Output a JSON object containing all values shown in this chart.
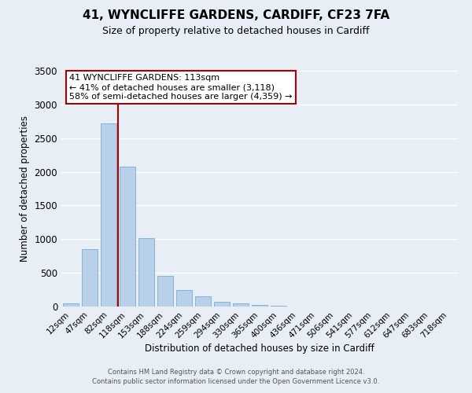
{
  "title1": "41, WYNCLIFFE GARDENS, CARDIFF, CF23 7FA",
  "title2": "Size of property relative to detached houses in Cardiff",
  "xlabel": "Distribution of detached houses by size in Cardiff",
  "ylabel": "Number of detached properties",
  "bar_labels": [
    "12sqm",
    "47sqm",
    "82sqm",
    "118sqm",
    "153sqm",
    "188sqm",
    "224sqm",
    "259sqm",
    "294sqm",
    "330sqm",
    "365sqm",
    "400sqm",
    "436sqm",
    "471sqm",
    "506sqm",
    "541sqm",
    "577sqm",
    "612sqm",
    "647sqm",
    "683sqm",
    "718sqm"
  ],
  "bar_values": [
    50,
    850,
    2720,
    2080,
    1010,
    460,
    240,
    150,
    70,
    50,
    25,
    10,
    5,
    2,
    1,
    0,
    0,
    0,
    0,
    0,
    0
  ],
  "bar_color": "#b8d0ea",
  "bar_edge_color": "#7aacce",
  "vline_x_index": 3,
  "vline_color": "#aa0000",
  "annotation_line1": "41 WYNCLIFFE GARDENS: 113sqm",
  "annotation_line2": "← 41% of detached houses are smaller (3,118)",
  "annotation_line3": "58% of semi-detached houses are larger (4,359) →",
  "annotation_box_color": "#ffffff",
  "annotation_box_edge": "#aa0000",
  "ylim": [
    0,
    3500
  ],
  "yticks": [
    0,
    500,
    1000,
    1500,
    2000,
    2500,
    3000,
    3500
  ],
  "bg_color": "#e8eef5",
  "grid_color": "#ffffff",
  "footer1": "Contains HM Land Registry data © Crown copyright and database right 2024.",
  "footer2": "Contains public sector information licensed under the Open Government Licence v3.0."
}
